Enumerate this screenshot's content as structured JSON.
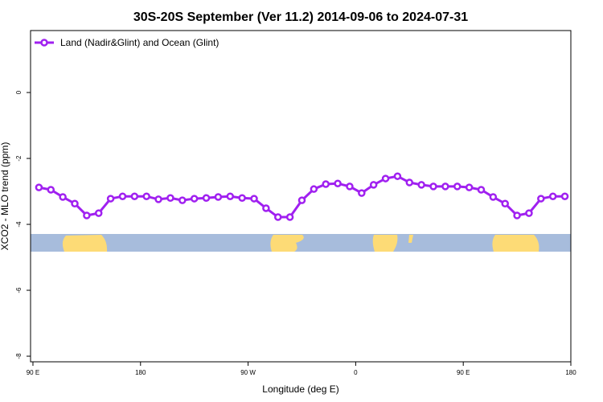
{
  "chart_data": {
    "type": "line",
    "title": "30S-20S September (Ver 11.2)   2014-09-06 to 2024-07-31",
    "x_label": "Longitude (deg E)",
    "y_label": "XCO2 - MLO trend (ppm)",
    "x": [
      95,
      105,
      115,
      125,
      135,
      145,
      155,
      165,
      175,
      185,
      195,
      205,
      215,
      225,
      235,
      245,
      255,
      265,
      275,
      285,
      295,
      305,
      315,
      325,
      335,
      345,
      355,
      365,
      375,
      385,
      395,
      405,
      415,
      425,
      435,
      445,
      455,
      465,
      475,
      485,
      495,
      505,
      515,
      525,
      535
    ],
    "series": [
      {
        "name": "Land (Nadir&Glint) and Ocean (Glint)",
        "color": "#a020f0",
        "values": [
          -2.88,
          -2.95,
          -3.17,
          -3.37,
          -3.73,
          -3.66,
          -3.22,
          -3.15,
          -3.15,
          -3.15,
          -3.24,
          -3.2,
          -3.27,
          -3.22,
          -3.2,
          -3.17,
          -3.15,
          -3.2,
          -3.22,
          -3.51,
          -3.78,
          -3.78,
          -3.27,
          -2.93,
          -2.78,
          -2.76,
          -2.85,
          -3.05,
          -2.8,
          -2.61,
          -2.54,
          -2.73,
          -2.8,
          -2.85,
          -2.85,
          -2.85,
          -2.88,
          -2.95,
          -3.17,
          -3.37,
          -3.73,
          -3.66,
          -3.22,
          -3.15,
          -3.15
        ]
      }
    ],
    "xlim": [
      88,
      540
    ],
    "ylim": [
      -8.17,
      1.88
    ],
    "xticks": [
      {
        "value": 90,
        "label": "90 E"
      },
      {
        "value": 180,
        "label": "180"
      },
      {
        "value": 270,
        "label": "90 W"
      },
      {
        "value": 360,
        "label": "0"
      },
      {
        "value": 450,
        "label": "90 E"
      },
      {
        "value": 540,
        "label": "180"
      }
    ],
    "yticks": [
      -8,
      -6,
      -4,
      -2,
      0
    ],
    "legend": "top-left"
  }
}
